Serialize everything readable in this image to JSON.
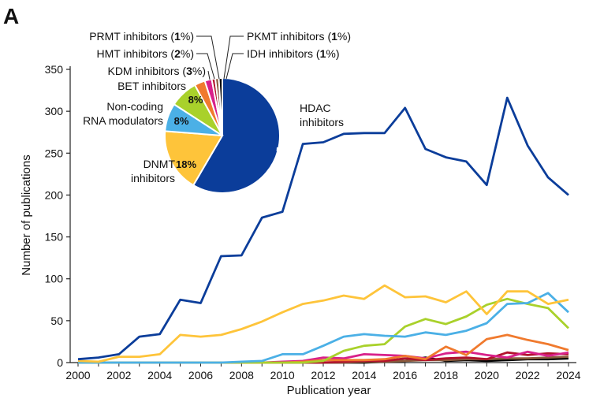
{
  "panel_label": "A",
  "chart_data": {
    "type": "line",
    "xlabel": "Publication year",
    "ylabel": "Number of publications",
    "xlim": [
      2000,
      2024
    ],
    "ylim": [
      0,
      350
    ],
    "x_ticks": [
      "2000",
      "2002",
      "2004",
      "2006",
      "2008",
      "2010",
      "2012",
      "2014",
      "2016",
      "2018",
      "2020",
      "2022",
      "2024"
    ],
    "y_ticks": [
      "0",
      "50",
      "100",
      "150",
      "200",
      "250",
      "300",
      "350"
    ],
    "grid": false,
    "x": [
      2000,
      2001,
      2002,
      2003,
      2004,
      2005,
      2006,
      2007,
      2008,
      2009,
      2010,
      2011,
      2012,
      2013,
      2014,
      2015,
      2016,
      2017,
      2018,
      2019,
      2020,
      2021,
      2022,
      2023,
      2024
    ],
    "series": [
      {
        "color": "#0b3d9a",
        "values": [
          4,
          6,
          10,
          31,
          34,
          75,
          71,
          127,
          128,
          173,
          180,
          261,
          263,
          273,
          274,
          274,
          304,
          255,
          245,
          240,
          212,
          316,
          259,
          221,
          200
        ]
      },
      {
        "color": "#fec43a",
        "values": [
          2,
          1,
          7,
          7,
          10,
          33,
          31,
          33,
          40,
          49,
          60,
          70,
          74,
          80,
          76,
          92,
          78,
          79,
          72,
          85,
          58,
          85,
          85,
          70,
          75
        ]
      },
      {
        "color": "#4bb0e6",
        "values": [
          0,
          0,
          0,
          0,
          0,
          0,
          0,
          0,
          1,
          2,
          10,
          10,
          20,
          31,
          34,
          32,
          31,
          36,
          33,
          38,
          47,
          70,
          71,
          83,
          60
        ]
      },
      {
        "color": "#a9d12b",
        "values": [
          0,
          0,
          0,
          0,
          0,
          0,
          0,
          0,
          0,
          0,
          0,
          0,
          2,
          14,
          20,
          22,
          43,
          52,
          46,
          55,
          69,
          76,
          70,
          65,
          41
        ]
      },
      {
        "color": "#f07a2e",
        "values": [
          0,
          0,
          0,
          0,
          0,
          0,
          0,
          0,
          0,
          0,
          0,
          1,
          3,
          3,
          3,
          4,
          8,
          4,
          19,
          9,
          28,
          33,
          27,
          22,
          15
        ]
      },
      {
        "color": "#d8208a",
        "values": [
          0,
          0,
          0,
          0,
          0,
          0,
          0,
          0,
          0,
          0,
          1,
          2,
          6,
          5,
          10,
          9,
          8,
          5,
          11,
          13,
          9,
          6,
          13,
          8,
          12
        ]
      },
      {
        "color": "#b2122d",
        "values": [
          0,
          0,
          0,
          0,
          0,
          0,
          0,
          0,
          0,
          0,
          0,
          0,
          0,
          1,
          2,
          2,
          5,
          3,
          5,
          6,
          4,
          12,
          9,
          11,
          10
        ]
      },
      {
        "color": "#8a5a3c",
        "values": [
          0,
          0,
          0,
          0,
          0,
          0,
          0,
          0,
          0,
          0,
          0,
          0,
          0,
          0,
          1,
          1,
          2,
          3,
          3,
          4,
          4,
          5,
          5,
          6,
          7
        ]
      },
      {
        "color": "#000000",
        "values": [
          0,
          0,
          0,
          0,
          0,
          0,
          0,
          0,
          0,
          0,
          0,
          0,
          0,
          0,
          0,
          1,
          2,
          6,
          2,
          3,
          2,
          3,
          4,
          4,
          5
        ]
      }
    ],
    "pie": {
      "slices": [
        {
          "label": "HDAC inhibitors",
          "value": 59,
          "pct_text": "59%",
          "color": "#0b3d9a"
        },
        {
          "label": "DNMT inhibitors",
          "value": 18,
          "pct_text": "18%",
          "color": "#fec43a"
        },
        {
          "label": "Non-coding RNA modulators",
          "value": 8,
          "pct_text": "8%",
          "color": "#4bb0e6"
        },
        {
          "label": "BET inhibitors",
          "value": 8,
          "pct_text": "8%",
          "color": "#a9d12b"
        },
        {
          "label": "KDM inhibitors",
          "value": 3,
          "pct_text": "3%",
          "color": "#f07a2e"
        },
        {
          "label": "HMT inhibitors",
          "value": 2,
          "pct_text": "2%",
          "color": "#d8208a"
        },
        {
          "label": "PRMT inhibitors",
          "value": 1,
          "pct_text": "1%",
          "color": "#b2122d"
        },
        {
          "label": "PKMT inhibitors",
          "value": 1,
          "pct_text": "1%",
          "color": "#8a5a3c"
        },
        {
          "label": "IDH inhibitors",
          "value": 1,
          "pct_text": "1%",
          "color": "#000000"
        }
      ],
      "labels": {
        "hdac_1": "HDAC",
        "hdac_2": "inhibitors",
        "dnmt_1": "DNMT",
        "dnmt_2": "inhibitors",
        "ncrna_1": "Non-coding",
        "ncrna_2": "RNA modulators",
        "bet": "BET inhibitors",
        "kdm_name": "KDM inhibitors (",
        "kdm_pct": "3",
        "kdm_end": "%)",
        "hmt_name": "HMT inhibitors (",
        "hmt_pct": "2",
        "hmt_end": "%)",
        "prmt_name": "PRMT inhibitors (",
        "prmt_pct": "1",
        "prmt_end": "%)",
        "pkmt_name": "PKMT inhibitors (",
        "pkmt_pct": "1",
        "pkmt_end": "%)",
        "idh_name": "IDH inhibitors (",
        "idh_pct": "1",
        "idh_end": "%)"
      }
    }
  }
}
